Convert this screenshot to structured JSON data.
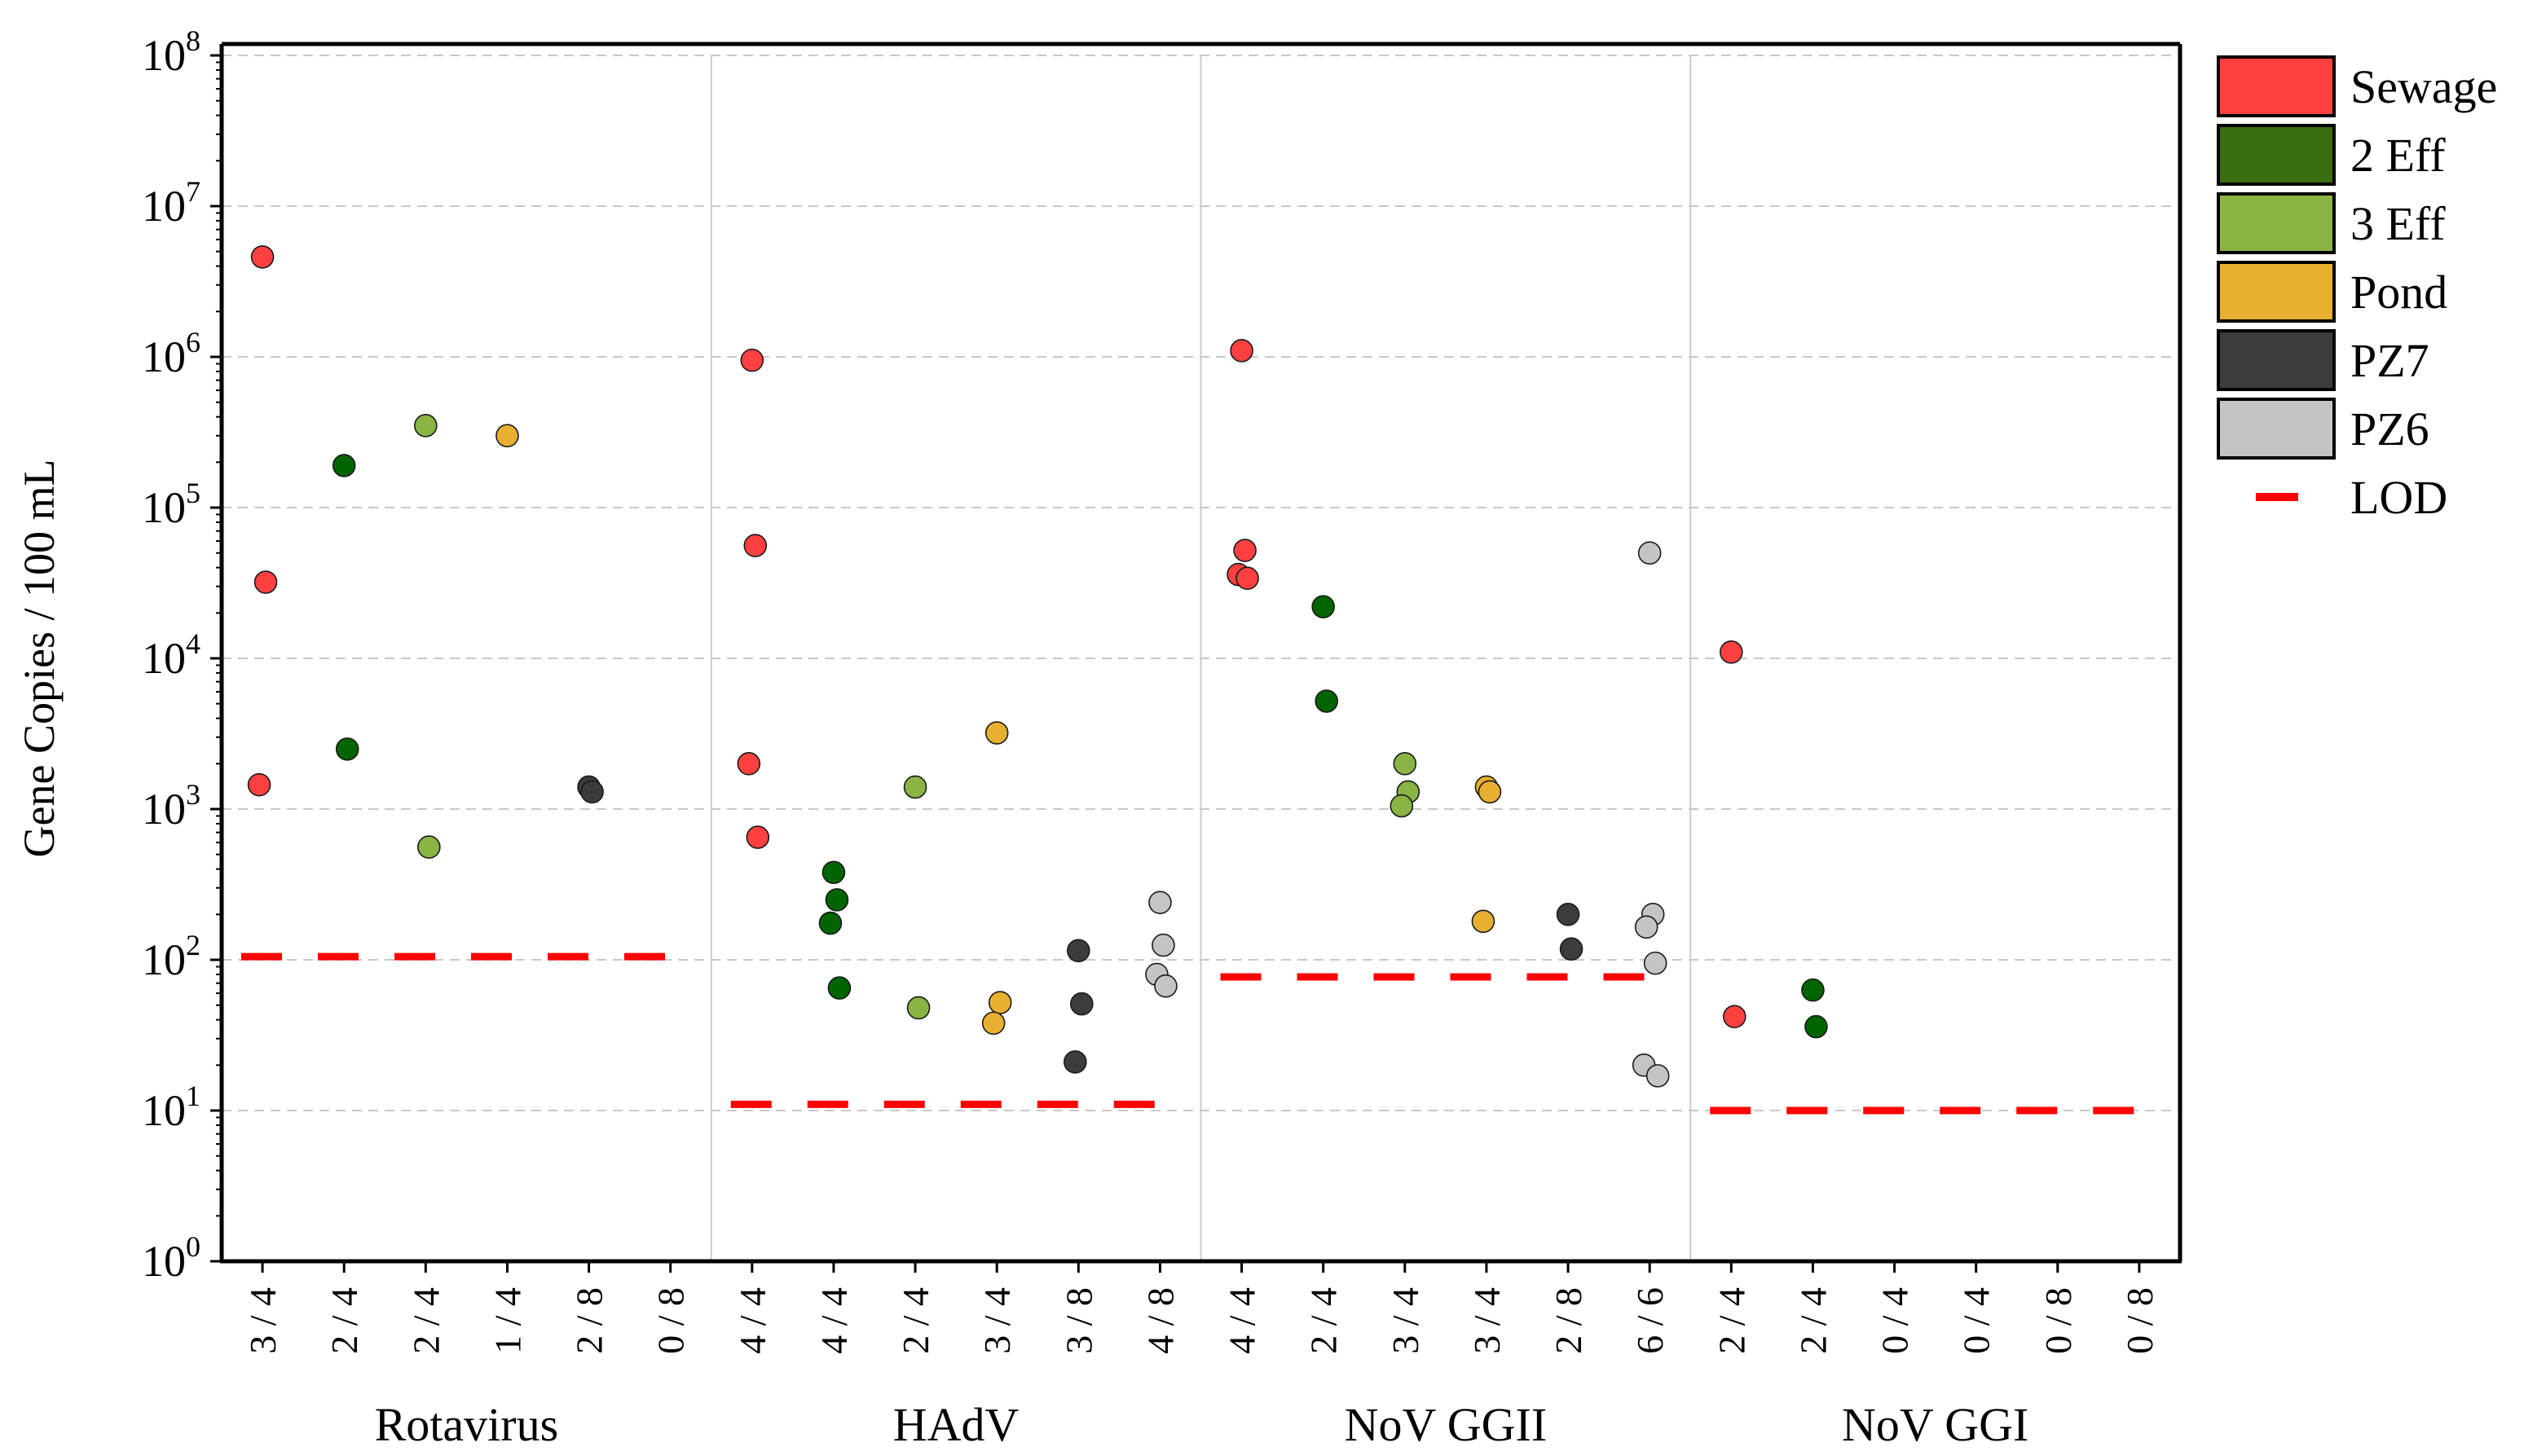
{
  "chart_data": {
    "type": "scatter",
    "ylabel": "Gene Copies / 100 mL",
    "yscale": "log",
    "ylim": [
      1,
      100000000
    ],
    "y_ticks": [
      {
        "base": "10",
        "exp": "0"
      },
      {
        "base": "10",
        "exp": "1"
      },
      {
        "base": "10",
        "exp": "2"
      },
      {
        "base": "10",
        "exp": "3"
      },
      {
        "base": "10",
        "exp": "4"
      },
      {
        "base": "10",
        "exp": "5"
      },
      {
        "base": "10",
        "exp": "6"
      },
      {
        "base": "10",
        "exp": "7"
      },
      {
        "base": "10",
        "exp": "8"
      }
    ],
    "grid": "horizontal dashed + vertical group separators",
    "legend_position": "right",
    "colors": {
      "Sewage": "#ff4040",
      "2 Eff": "#006400",
      "3 Eff": "#8ab443",
      "Pond": "#e8b030",
      "PZ7": "#3c3c3c",
      "PZ6": "#c4c4c4",
      "LOD": "#ff0000"
    },
    "legend": [
      {
        "label": "Sewage",
        "key": "Sewage",
        "swatch_color": "#ff4040"
      },
      {
        "label": "2 Eff",
        "key": "2 Eff",
        "swatch_color": "#3a6e10"
      },
      {
        "label": "3 Eff",
        "key": "3 Eff",
        "swatch_color": "#8ab443"
      },
      {
        "label": "Pond",
        "key": "Pond",
        "swatch_color": "#e8b030"
      },
      {
        "label": "PZ7",
        "key": "PZ7",
        "swatch_color": "#3c3c3c"
      },
      {
        "label": "PZ6",
        "key": "PZ6",
        "swatch_color": "#c4c4c4"
      },
      {
        "label": "LOD",
        "key": "LOD",
        "swatch_color": "#ff0000"
      }
    ],
    "groups": [
      {
        "name": "Rotavirus",
        "lod": 105,
        "categories": [
          {
            "sample": "Sewage",
            "label": "3 / 4",
            "values": [
              4600000,
              32000,
              1450
            ]
          },
          {
            "sample": "2 Eff",
            "label": "2 / 4",
            "values": [
              190000,
              2500
            ]
          },
          {
            "sample": "3 Eff",
            "label": "2 / 4",
            "values": [
              350000,
              560
            ]
          },
          {
            "sample": "Pond",
            "label": "1 / 4",
            "values": [
              300000
            ]
          },
          {
            "sample": "PZ7",
            "label": "2 / 8",
            "values": [
              1400,
              1300
            ]
          },
          {
            "sample": "PZ6",
            "label": "0 / 8",
            "values": []
          }
        ]
      },
      {
        "name": "HAdV",
        "lod": 11,
        "categories": [
          {
            "sample": "Sewage",
            "label": "4 / 4",
            "values": [
              950000,
              56000,
              2000,
              650
            ]
          },
          {
            "sample": "2 Eff",
            "label": "4 / 4",
            "values": [
              380,
              250,
              175,
              65
            ]
          },
          {
            "sample": "3 Eff",
            "label": "2 / 4",
            "values": [
              1400,
              48
            ]
          },
          {
            "sample": "Pond",
            "label": "3 / 4",
            "values": [
              3200,
              52,
              38
            ]
          },
          {
            "sample": "PZ7",
            "label": "3 / 8",
            "values": [
              115,
              51,
              21
            ]
          },
          {
            "sample": "PZ6",
            "label": "4 / 8",
            "values": [
              240,
              125,
              80,
              67
            ]
          }
        ]
      },
      {
        "name": "NoV GGII",
        "lod": 77,
        "categories": [
          {
            "sample": "Sewage",
            "label": "4 / 4",
            "values": [
              1100000,
              52000,
              36000,
              34000
            ]
          },
          {
            "sample": "2 Eff",
            "label": "2 / 4",
            "values": [
              22000,
              5200
            ]
          },
          {
            "sample": "3 Eff",
            "label": "3 / 4",
            "values": [
              2000,
              1300,
              1050
            ]
          },
          {
            "sample": "Pond",
            "label": "3 / 4",
            "values": [
              1400,
              1300,
              180
            ]
          },
          {
            "sample": "PZ7",
            "label": "2 / 8",
            "values": [
              200,
              118
            ]
          },
          {
            "sample": "PZ6",
            "label": "6 / 6",
            "values": [
              50000,
              200,
              165,
              95,
              20,
              17
            ]
          }
        ]
      },
      {
        "name": "NoV GGI",
        "lod": 10,
        "categories": [
          {
            "sample": "Sewage",
            "label": "2 / 4",
            "values": [
              11000,
              42
            ]
          },
          {
            "sample": "2 Eff",
            "label": "2 / 4",
            "values": [
              63,
              36
            ]
          },
          {
            "sample": "3 Eff",
            "label": "0 / 4",
            "values": []
          },
          {
            "sample": "Pond",
            "label": "0 / 4",
            "values": []
          },
          {
            "sample": "PZ7",
            "label": "0 / 8",
            "values": []
          },
          {
            "sample": "PZ6",
            "label": "0 / 8",
            "values": []
          }
        ]
      }
    ]
  }
}
